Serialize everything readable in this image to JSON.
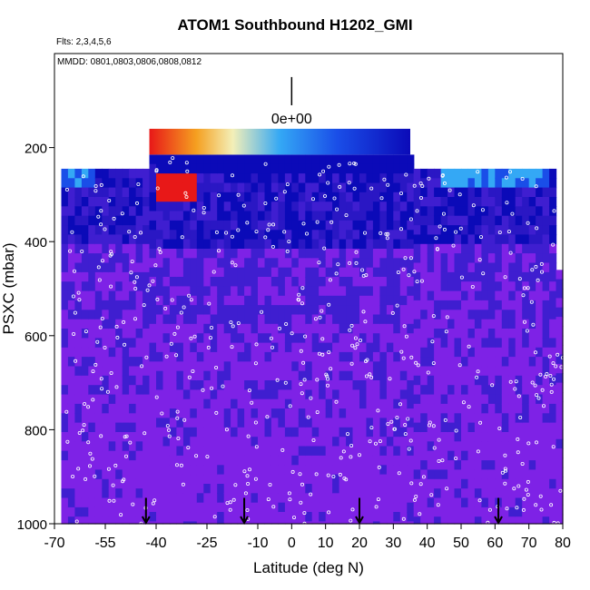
{
  "chart_data": {
    "type": "heatmap",
    "title": "ATOM1 Southbound H1202_GMI",
    "subtitle": "Flts: 2,3,4,5,6",
    "annotation": "MMDD: 0801,0803,0806,0808,0812",
    "xlabel": "Latitude (deg N)",
    "ylabel": "PSXC (mbar)",
    "xlim": [
      -70,
      80
    ],
    "ylim": [
      1000,
      0
    ],
    "x_ticks": [
      -70,
      -55,
      -40,
      -25,
      -10,
      0,
      10,
      20,
      30,
      40,
      50,
      60,
      70,
      80
    ],
    "x_tick_labels": [
      "-70",
      "-55",
      "-40",
      "-25",
      "-10",
      "0",
      "10",
      "20",
      "30",
      "40",
      "50",
      "60",
      "70",
      "80"
    ],
    "y_ticks": [
      200,
      400,
      600,
      800,
      1000
    ],
    "y_tick_labels": [
      "200",
      "400",
      "600",
      "800",
      "1000"
    ],
    "colorbar_label": "0e+00",
    "colorbar_range_mbar": [
      160,
      215
    ],
    "colorbar_lat_range": [
      -42,
      35
    ],
    "colors": {
      "background": "#7e22e6",
      "dark": "#3f1ed0",
      "darker": "#2a17c4",
      "navy": "#0b0ab8",
      "blue": "#1a4ee8",
      "cyan": "#34a8f5",
      "pale": "#f3efb8",
      "red": "#e81818",
      "marker": "#ffffff",
      "frame": "#000000"
    },
    "column_top_pressures": [
      {
        "lat": -67,
        "top": 245
      },
      {
        "lat": -66,
        "top": 245
      },
      {
        "lat": -41,
        "top": 215
      },
      {
        "lat": 35,
        "top": 215
      },
      {
        "lat": 36,
        "top": 215
      },
      {
        "lat": 78,
        "top": 215
      },
      {
        "lat": 79,
        "top": 460
      },
      {
        "lat": 80,
        "top": 460
      }
    ],
    "flight_markers_lat": [
      -43,
      -14,
      20,
      61
    ]
  }
}
